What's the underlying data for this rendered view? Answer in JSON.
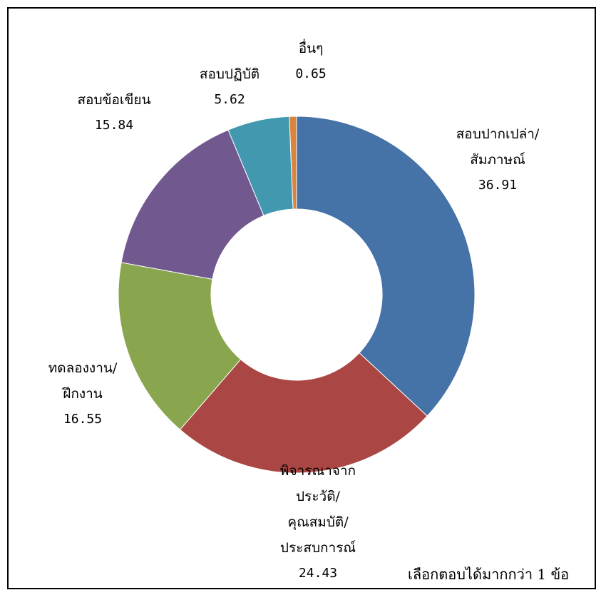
{
  "chart_data": {
    "type": "donut",
    "categories": [
      "สอบปากเปล่า/สัมภาษณ์",
      "พิจารณาจากประวัติ/คุณสมบัติ/ประสบการณ์",
      "ทดลองงาน/ฝึกงาน",
      "สอบข้อเขียน",
      "สอบปฏิบัติ",
      "อื่นๆ"
    ],
    "values": [
      36.91,
      24.43,
      16.55,
      15.84,
      5.62,
      0.65
    ],
    "colors": [
      "#4572A7",
      "#AA4643",
      "#89A54E",
      "#71588F",
      "#4198AF",
      "#DB843D"
    ],
    "labels": [
      {
        "lines": [
          "สอบปากเปล่า/",
          "สัมภาษณ์"
        ],
        "value": "36.91"
      },
      {
        "lines": [
          "พิจารณาจาก",
          "ประวัติ/",
          "คุณสมบัติ/",
          "ประสบการณ์"
        ],
        "value": "24.43"
      },
      {
        "lines": [
          "ทดลองงาน/",
          "ฝึกงาน"
        ],
        "value": "16.55"
      },
      {
        "lines": [
          "สอบข้อเขียน"
        ],
        "value": "15.84"
      },
      {
        "lines": [
          "สอบปฏิบัติ"
        ],
        "value": "5.62"
      },
      {
        "lines": [
          "อื่นๆ"
        ],
        "value": "0.65"
      }
    ],
    "legend": "none"
  },
  "note": "เลือกตอบได้มากกว่า 1 ข้อ"
}
